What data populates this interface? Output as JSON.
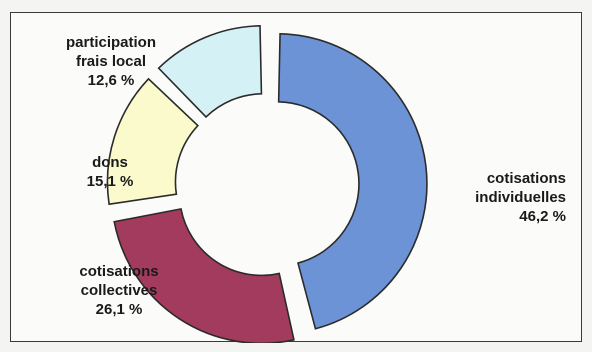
{
  "chart_data": {
    "type": "pie",
    "variant": "donut-exploded",
    "legend": "none",
    "slices": [
      {
        "label_lines": [
          "cotisations",
          "individuelles"
        ],
        "percent_text": "46,2 %",
        "value": 46.2,
        "color": "#6c93d6"
      },
      {
        "label_lines": [
          "cotisations",
          "collectives"
        ],
        "percent_text": "26,1 %",
        "value": 26.1,
        "color": "#a33b5f"
      },
      {
        "label_lines": [
          "dons"
        ],
        "percent_text": "15,1 %",
        "value": 15.1,
        "color": "#fafacd"
      },
      {
        "label_lines": [
          "participation",
          "frais local"
        ],
        "percent_text": "12,6 %",
        "value": 12.6,
        "color": "#d4f1f6"
      }
    ]
  }
}
